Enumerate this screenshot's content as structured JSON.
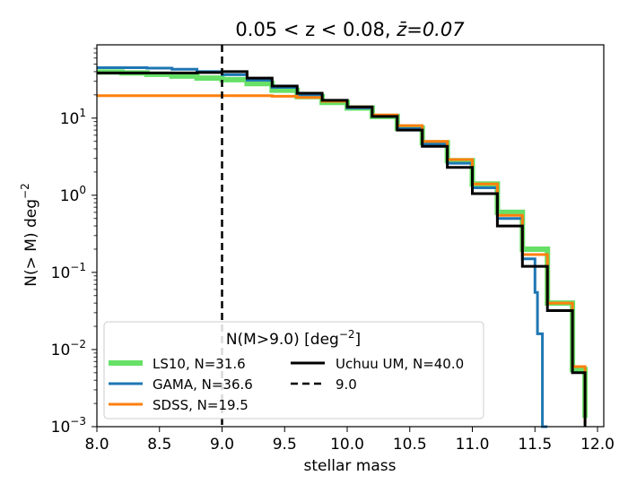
{
  "chart_data": {
    "type": "line",
    "title_main": "0.05 < z < 0.08, ",
    "title_zbar": "z̄=0.07",
    "xlabel": "stellar mass",
    "ylabel_main": "N(> M) deg",
    "ylabel_exp": "−2",
    "xlim": [
      8.0,
      12.05
    ],
    "ylim_log10": [
      -3,
      1.95
    ],
    "yscale": "log",
    "xticks": [
      8.0,
      8.5,
      9.0,
      9.5,
      10.0,
      10.5,
      11.0,
      11.5,
      12.0
    ],
    "xtick_labels": [
      "8.0",
      "8.5",
      "9.0",
      "9.5",
      "10.0",
      "10.5",
      "11.0",
      "11.5",
      "12.0"
    ],
    "ytick_exponents": [
      1,
      0,
      -1,
      -2,
      -3
    ],
    "ytick_labels": [
      {
        "base": "10",
        "exp": "1"
      },
      {
        "base": "10",
        "exp": "0"
      },
      {
        "base": "10",
        "exp": "−1"
      },
      {
        "base": "10",
        "exp": "−2"
      },
      {
        "base": "10",
        "exp": "−3"
      }
    ],
    "vline": {
      "x": 9.0,
      "label": "9.0",
      "color": "#000000",
      "style": "dashed"
    },
    "series": [
      {
        "name": "LS10, N=31.6",
        "color": "#66e066",
        "width": 6,
        "x": [
          8.0,
          8.2,
          8.4,
          8.6,
          8.8,
          9.0,
          9.2,
          9.4,
          9.6,
          9.8,
          10.0,
          10.2,
          10.4,
          10.6,
          10.8,
          11.0,
          11.2,
          11.4,
          11.6,
          11.8,
          11.9
        ],
        "y": [
          39.5,
          38.5,
          37,
          35,
          33,
          31.5,
          28,
          23,
          19,
          16,
          13.5,
          10.5,
          7.4,
          4.8,
          2.8,
          1.4,
          0.6,
          0.2,
          0.04,
          0.0055,
          0.0013
        ]
      },
      {
        "name": "GAMA, N=36.6",
        "color": "#1f77b4",
        "width": 3,
        "x": [
          8.0,
          8.2,
          8.4,
          8.6,
          8.8,
          9.0,
          9.2,
          9.4,
          9.6,
          9.8,
          10.0,
          10.2,
          10.4,
          10.6,
          10.8,
          11.0,
          11.2,
          11.4,
          11.5,
          11.52,
          11.55,
          11.56,
          11.6
        ],
        "y": [
          45,
          45,
          44.5,
          43,
          40,
          36.5,
          31,
          25,
          20,
          16.5,
          13.5,
          10.5,
          7.3,
          4.6,
          2.6,
          1.25,
          0.5,
          0.15,
          0.055,
          0.016,
          0.016,
          0.001,
          0.001
        ]
      },
      {
        "name": "SDSS, N=19.5",
        "color": "#ff7f0e",
        "width": 3,
        "x": [
          8.0,
          8.5,
          9.0,
          9.4,
          9.6,
          9.8,
          10.0,
          10.2,
          10.4,
          10.6,
          10.8,
          11.0,
          11.2,
          11.4,
          11.6,
          11.8,
          11.9
        ],
        "y": [
          19.5,
          19.5,
          19.5,
          19.2,
          18.5,
          16.5,
          14,
          11,
          8,
          5,
          2.9,
          1.4,
          0.55,
          0.17,
          0.04,
          0.006,
          0.0011
        ]
      },
      {
        "name": "Uchuu UM, N=40.0",
        "color": "#000000",
        "width": 3,
        "x": [
          8.0,
          8.2,
          8.4,
          8.6,
          8.8,
          9.0,
          9.2,
          9.4,
          9.6,
          9.8,
          10.0,
          10.2,
          10.4,
          10.6,
          10.8,
          11.0,
          11.2,
          11.4,
          11.6,
          11.8,
          11.9
        ],
        "y": [
          38.5,
          38.5,
          38.5,
          38.5,
          39,
          40,
          33,
          26,
          21,
          17,
          14,
          10.5,
          7,
          4.3,
          2.3,
          1.05,
          0.4,
          0.12,
          0.032,
          0.005,
          0.001
        ]
      }
    ],
    "legend": {
      "title_main": "N(M>9.0) [deg",
      "title_exp": "−2",
      "title_close": "]",
      "placement": "lower-left"
    }
  }
}
